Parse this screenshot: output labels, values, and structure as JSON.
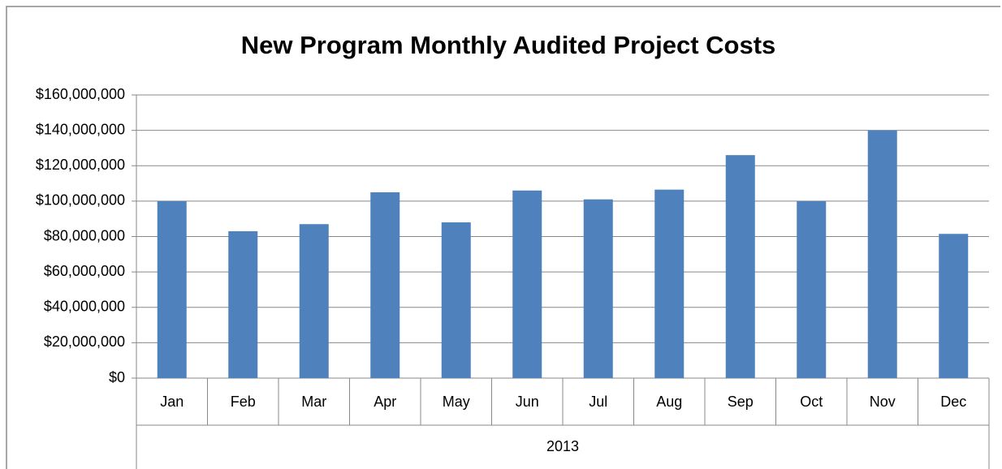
{
  "chart_data": {
    "type": "bar",
    "title": "New Program Monthly Audited  Project Costs",
    "categories": [
      "Jan",
      "Feb",
      "Mar",
      "Apr",
      "May",
      "Jun",
      "Jul",
      "Aug",
      "Sep",
      "Oct",
      "Nov",
      "Dec"
    ],
    "values": [
      100000000,
      83000000,
      87000000,
      105000000,
      88000000,
      106000000,
      101000000,
      106500000,
      126000000,
      100000000,
      140000000,
      81500000
    ],
    "x_group": "2013",
    "color": "#4f81bd",
    "ylim": [
      0,
      160000000
    ],
    "yticks": [
      {
        "value": 0,
        "label": "$0"
      },
      {
        "value": 20000000,
        "label": "$20,000,000"
      },
      {
        "value": 40000000,
        "label": "$40,000,000"
      },
      {
        "value": 60000000,
        "label": "$60,000,000"
      },
      {
        "value": 80000000,
        "label": "$80,000,000"
      },
      {
        "value": 100000000,
        "label": "$100,000,000"
      },
      {
        "value": 120000000,
        "label": "$120,000,000"
      },
      {
        "value": 140000000,
        "label": "$140,000,000"
      },
      {
        "value": 160000000,
        "label": "$160,000,000"
      }
    ],
    "grid": true
  }
}
